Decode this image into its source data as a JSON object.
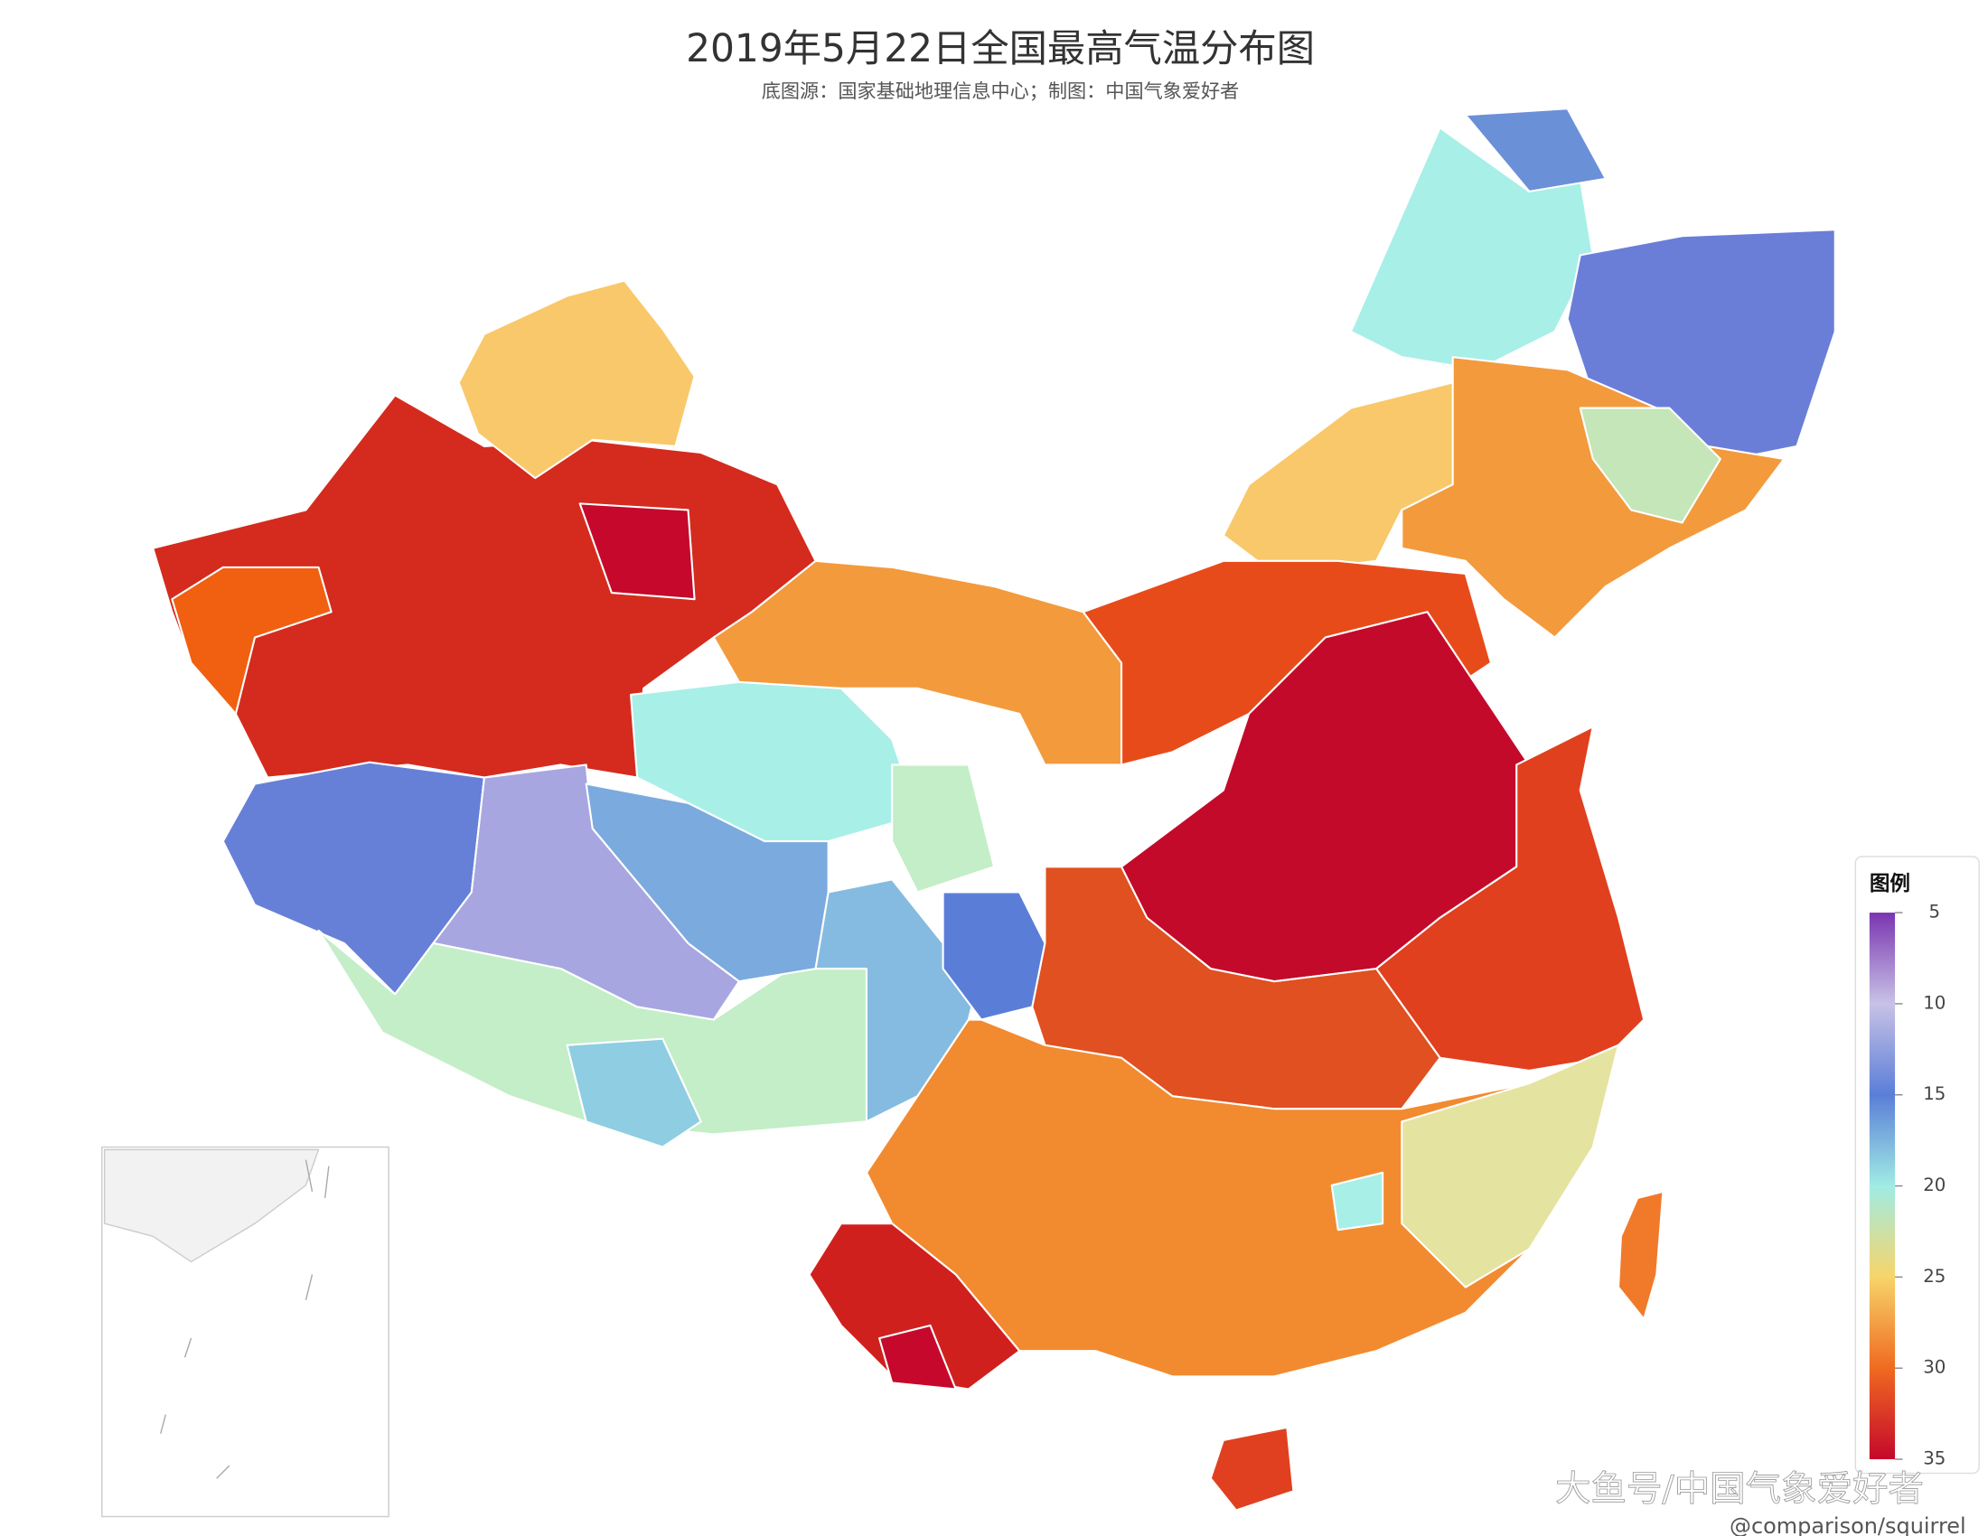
{
  "title": "2019年5月22日全国最高气温分布图",
  "subtitle": "底图源：国家基础地理信息中心；制图：中国气象爱好者",
  "legend": {
    "title": "图例",
    "lim": [
      5,
      35
    ],
    "ticks": [
      5,
      10,
      15,
      20,
      25,
      30,
      35
    ],
    "colors": [
      "#7a35b0",
      "#c8c2e6",
      "#5a7ed8",
      "#a0ece4",
      "#f7d56a",
      "#f06a20",
      "#c5082b"
    ]
  },
  "watermark": {
    "platform": "大鱼号/中国气象爱好者",
    "handle": "@comparison/squirrel"
  }
}
